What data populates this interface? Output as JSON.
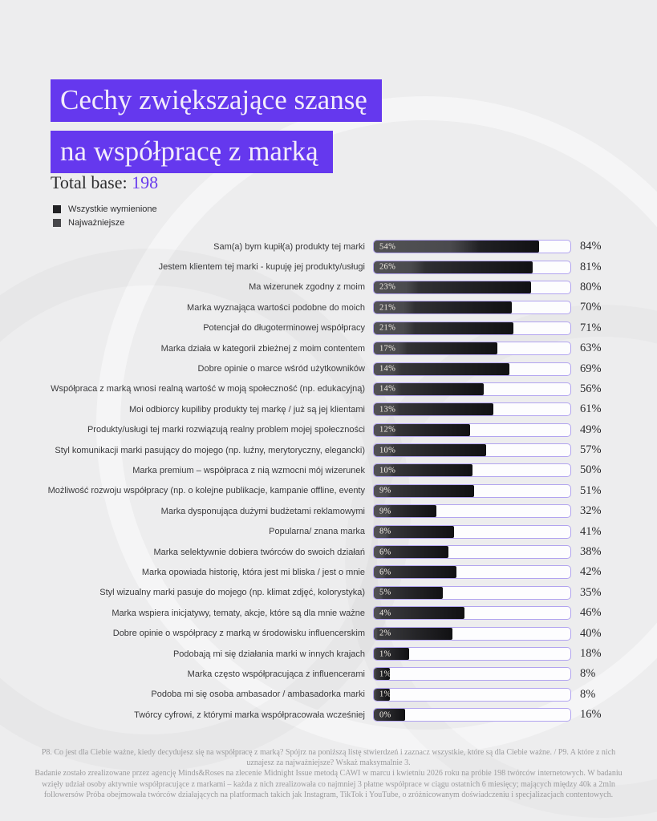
{
  "page": {
    "title_line1": "Cechy zwiększające szansę",
    "title_line2": "na współpracę z marką",
    "total_base_label": "Total base:",
    "total_base_value": "198"
  },
  "legend": [
    {
      "label": "Wszystkie wymienione",
      "color": "#222225"
    },
    {
      "label": "Najważniejsze",
      "color": "#47474a"
    }
  ],
  "chart_data": {
    "type": "bar",
    "orientation": "horizontal",
    "title": "Cechy zwiększające szansę na współpracę z marką",
    "total_base": 198,
    "unit": "%",
    "xlim": [
      0,
      100
    ],
    "legend_position": "top-left",
    "categories": [
      "Sam(a) bym kupił(a) produkty tej marki",
      "Jestem klientem tej marki - kupuję jej produkty/usługi",
      "Ma wizerunek zgodny z moim",
      "Marka wyznająca wartości podobne do moich",
      "Potencjał do długoterminowej współpracy",
      "Marka działa w kategorii zbieżnej z moim contentem",
      "Dobre opinie o marce wśród użytkowników",
      "Współpraca z marką wnosi realną wartość w moją społeczność (np. edukacyjną)",
      "Moi odbiorcy kupiliby produkty tej markę / już są jej klientami",
      "Produkty/usługi tej marki rozwiązują realny problem mojej społeczności",
      "Styl komunikacji marki pasujący do mojego (np. luźny, merytoryczny, elegancki)",
      "Marka premium – współpraca z nią wzmocni mój wizerunek",
      "Możliwość rozwoju współpracy (np. o kolejne publikacje, kampanie offline, eventy",
      "Marka dysponująca dużymi budżetami reklamowymi",
      "Popularna/ znana marka",
      "Marka selektywnie dobiera twórców do swoich działań",
      "Marka opowiada historię, która jest mi bliska / jest o mnie",
      "Styl wizualny marki pasuje do mojego (np. klimat zdjęć, kolorystyka)",
      "Marka wspiera inicjatywy, tematy, akcje, które są dla mnie ważne",
      "Dobre opinie o współpracy z marką w środowisku influencerskim",
      "Podobają mi się działania marki w innych krajach",
      "Marka często współpracująca z influencerami",
      "Podoba mi się osoba ambasador / ambasadorka marki",
      "Twórcy cyfrowi, z którymi marka współpracowała wcześniej"
    ],
    "series": [
      {
        "name": "Wszystkie wymienione",
        "values": [
          84,
          81,
          80,
          70,
          71,
          63,
          69,
          56,
          61,
          49,
          57,
          50,
          51,
          32,
          41,
          38,
          42,
          35,
          46,
          40,
          18,
          8,
          8,
          16
        ]
      },
      {
        "name": "Najważniejsze",
        "values": [
          54,
          26,
          23,
          21,
          21,
          17,
          14,
          14,
          13,
          12,
          10,
          10,
          9,
          9,
          8,
          6,
          6,
          5,
          4,
          2,
          1,
          1,
          1,
          0
        ]
      }
    ]
  },
  "footnote": {
    "para1": "P8. Co jest dla Ciebie ważne, kiedy decydujesz się na współpracę z marką? Spójrz na poniższą listę stwierdzeń i zaznacz wszystkie, które są dla Ciebie ważne. / P9. A które z nich uznajesz za najważniejsze? Wskaż maksymalnie 3.",
    "para2": "Badanie zostało zrealizowane przez agencję Minds&Roses na zlecenie Midnight Issue metodą CAWI w marcu i kwietniu 2026 roku na próbie 198 twórców internetowych. W badaniu wzięły udział osoby aktywnie współpracujące z markami – każda z nich zrealizowała co najmniej 3 płatne współprace w ciągu ostatnich 6 miesięcy; mających między 40k a 2mln followersów Próba obejmowała twórców działających na platformach takich jak Instagram, TikTok i YouTube, o zróżnicowanym doświadczeniu i specjalizacjach contentowych."
  },
  "colors": {
    "background": "#ededee",
    "accent_purple": "#6538ee",
    "total_base_number": "#6a3ded",
    "bar_all": "#1a1a1d",
    "bar_top": "#4a4a4d",
    "track_border": "#b1a3ef",
    "track_fill": "#fdfdfe"
  }
}
